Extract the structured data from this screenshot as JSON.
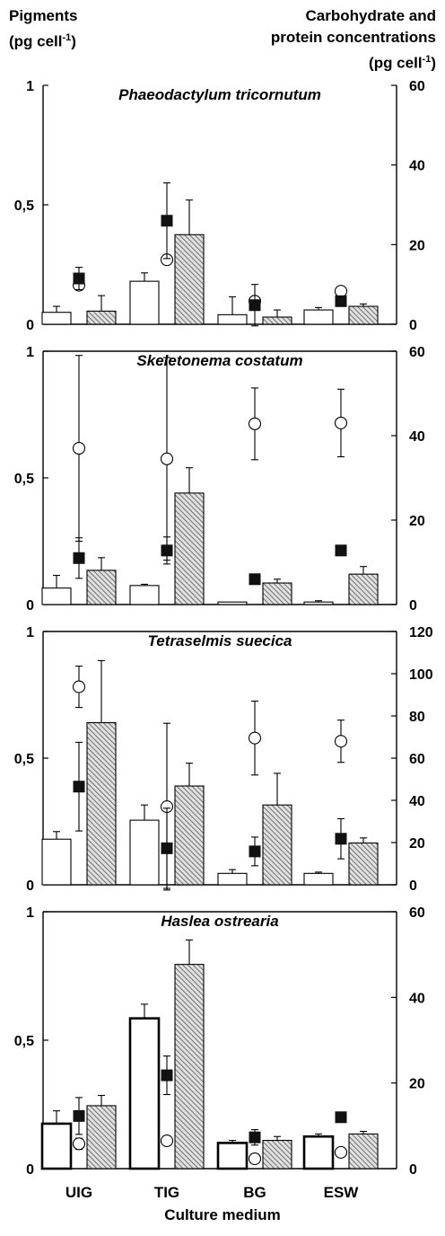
{
  "headers": {
    "left_line1": "Pigments",
    "left_line2": "(pg cell",
    "left_sup": "-1",
    "left_close": ")",
    "right_line1": "Carbohydrate and",
    "right_line2": "protein concentrations",
    "right_line3": "(pg cell",
    "right_sup": "-1",
    "right_close": ")"
  },
  "xlabel": "Culture medium",
  "colors": {
    "bar_open": "#ffffff",
    "bar_hatched": "#bdbdbd",
    "marker_filled": "#111111",
    "marker_open": "#ffffff",
    "axis": "#000000"
  },
  "chart_data": [
    {
      "type": "bar",
      "title": "Phaeodactylum tricornutum",
      "categories": [
        "UIG",
        "TIG",
        "BG",
        "ESW"
      ],
      "left_ylim": [
        0,
        1
      ],
      "left_ticks": [
        0,
        0.5,
        1
      ],
      "left_tick_labels": [
        "0",
        "0,5",
        "1"
      ],
      "right_ylim": [
        0,
        60
      ],
      "right_ticks": [
        0,
        20,
        40,
        60
      ],
      "bars_open": {
        "values": [
          0.05,
          0.18,
          0.04,
          0.06
        ],
        "err": [
          0.025,
          0.035,
          0.075,
          0.01
        ]
      },
      "bars_hatched": {
        "values": [
          0.055,
          0.375,
          0.03,
          0.075
        ],
        "err": [
          0.065,
          0.145,
          0.03,
          0.01
        ]
      },
      "squares": {
        "values": [
          11.5,
          26,
          4.8,
          5.8
        ],
        "err": [
          2.8,
          9.5,
          5.2,
          0
        ]
      },
      "circles": {
        "values": [
          9.8,
          16.2,
          5.8,
          8.3
        ],
        "err": [
          0,
          0,
          0,
          0
        ]
      }
    },
    {
      "type": "bar",
      "title": "Skeletonema costatum",
      "categories": [
        "UIG",
        "TIG",
        "BG",
        "ESW"
      ],
      "left_ylim": [
        0,
        1
      ],
      "left_ticks": [
        0,
        0.5,
        1
      ],
      "left_tick_labels": [
        "0",
        "0,5",
        "1"
      ],
      "right_ylim": [
        0,
        60
      ],
      "right_ticks": [
        0,
        20,
        40,
        60
      ],
      "bars_open": {
        "values": [
          0.065,
          0.075,
          0.01,
          0.01
        ],
        "err": [
          0.05,
          0.005,
          0,
          0.005
        ]
      },
      "bars_hatched": {
        "values": [
          0.135,
          0.44,
          0.085,
          0.12
        ],
        "err": [
          0.05,
          0.1,
          0.015,
          0.03
        ]
      },
      "squares": {
        "values": [
          11,
          12.8,
          6,
          12.8
        ],
        "err": [
          4.8,
          3.2,
          1.2,
          1.2
        ]
      },
      "circles": {
        "values": [
          37,
          34.5,
          42.8,
          43
        ],
        "err": [
          22,
          24,
          8.5,
          8
        ]
      }
    },
    {
      "type": "bar",
      "title": "Tetraselmis suecica",
      "categories": [
        "UIG",
        "TIG",
        "BG",
        "ESW"
      ],
      "left_ylim": [
        0,
        1
      ],
      "left_ticks": [
        0,
        0.5,
        1
      ],
      "left_tick_labels": [
        "0",
        "0,5",
        "1"
      ],
      "right_ylim": [
        0,
        120
      ],
      "right_ticks": [
        0,
        20,
        40,
        60,
        80,
        100,
        120
      ],
      "bars_open": {
        "values": [
          0.18,
          0.255,
          0.045,
          0.045
        ],
        "err": [
          0.03,
          0.06,
          0.015,
          0.005
        ]
      },
      "bars_hatched": {
        "values": [
          0.64,
          0.39,
          0.315,
          0.165
        ],
        "err": [
          0.245,
          0.09,
          0.125,
          0.02
        ]
      },
      "squares": {
        "values": [
          46.5,
          17.3,
          15.8,
          21.8
        ],
        "err": [
          21,
          19,
          6.8,
          9.5
        ]
      },
      "circles": {
        "values": [
          93.8,
          37,
          69.5,
          68
        ],
        "err": [
          9.8,
          39.5,
          17.5,
          10
        ]
      }
    },
    {
      "type": "bar",
      "title": "Haslea ostrearia",
      "categories": [
        "UIG",
        "TIG",
        "BG",
        "ESW"
      ],
      "left_ylim": [
        0,
        1
      ],
      "left_ticks": [
        0,
        0.5,
        1
      ],
      "left_tick_labels": [
        "0",
        "0,5",
        "1"
      ],
      "right_ylim": [
        0,
        60
      ],
      "right_ticks": [
        0,
        20,
        40,
        60
      ],
      "bars_open": {
        "values": [
          0.175,
          0.585,
          0.1,
          0.125
        ],
        "err": [
          0.05,
          0.055,
          0.01,
          0.01
        ]
      },
      "bars_hatched": {
        "values": [
          0.245,
          0.795,
          0.11,
          0.135
        ],
        "err": [
          0.04,
          0.095,
          0.015,
          0.01
        ]
      },
      "squares": {
        "values": [
          12.3,
          21.8,
          7.3,
          12
        ],
        "err": [
          4.3,
          4.5,
          1.8,
          0
        ]
      },
      "circles": {
        "values": [
          5.8,
          6.5,
          2.3,
          3.8
        ],
        "err": [
          1.3,
          0,
          0,
          0
        ]
      }
    }
  ]
}
